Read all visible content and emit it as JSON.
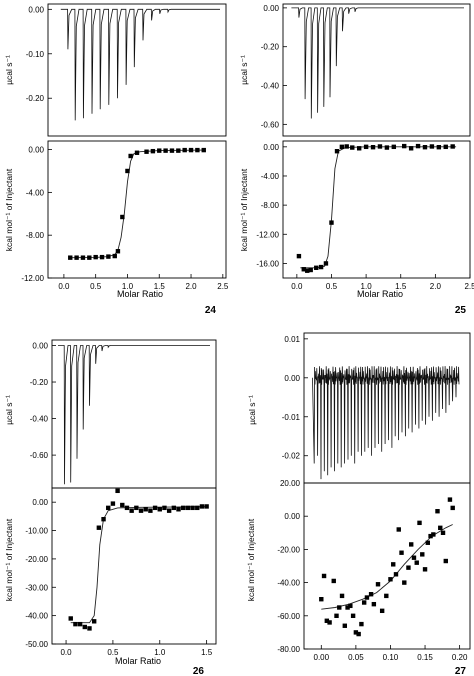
{
  "chart_data": [
    {
      "type": "line",
      "compound_label": "24",
      "thermogram": {
        "ylabel": "µcal s⁻¹",
        "yticks": [
          "0.00",
          "-0.10",
          "-0.20"
        ],
        "ylim": [
          -0.285,
          0.012
        ],
        "baseline": 0.0,
        "x_range": [
          0,
          3650
        ],
        "peaks": [
          {
            "x": 300,
            "y": -0.09
          },
          {
            "x": 460,
            "y": -0.25
          },
          {
            "x": 640,
            "y": -0.245
          },
          {
            "x": 830,
            "y": -0.235
          },
          {
            "x": 1010,
            "y": -0.225
          },
          {
            "x": 1200,
            "y": -0.215
          },
          {
            "x": 1390,
            "y": -0.2
          },
          {
            "x": 1580,
            "y": -0.17
          },
          {
            "x": 1760,
            "y": -0.13
          },
          {
            "x": 1950,
            "y": -0.07
          },
          {
            "x": 2140,
            "y": -0.025
          },
          {
            "x": 2320,
            "y": -0.01
          },
          {
            "x": 2500,
            "y": -0.006
          }
        ]
      },
      "isotherm": {
        "xlabel": "Molar Ratio",
        "ylabel": "kcal mol⁻¹ of Injectant",
        "xticks": [
          "0.0",
          "0.5",
          "1.0",
          "1.5",
          "2.0",
          "2.5"
        ],
        "yticks": [
          "0.00",
          "-4.00",
          "-8.00",
          "-12.00"
        ],
        "xlim": [
          -0.25,
          2.55
        ],
        "ylim": [
          -12.0,
          0.8
        ],
        "markers": "squares",
        "points": [
          [
            0.1,
            -10.1
          ],
          [
            0.2,
            -10.1
          ],
          [
            0.3,
            -10.1
          ],
          [
            0.4,
            -10.1
          ],
          [
            0.5,
            -10.05
          ],
          [
            0.6,
            -10.05
          ],
          [
            0.7,
            -10.0
          ],
          [
            0.8,
            -9.95
          ],
          [
            0.85,
            -9.5
          ],
          [
            0.92,
            -6.3
          ],
          [
            1.0,
            -2.0
          ],
          [
            1.05,
            -0.6
          ],
          [
            1.15,
            -0.3
          ],
          [
            1.3,
            -0.2
          ],
          [
            1.4,
            -0.15
          ],
          [
            1.5,
            -0.1
          ],
          [
            1.6,
            -0.1
          ],
          [
            1.7,
            -0.1
          ],
          [
            1.8,
            -0.1
          ],
          [
            1.9,
            -0.05
          ],
          [
            2.0,
            -0.05
          ],
          [
            2.1,
            -0.05
          ],
          [
            2.2,
            -0.05
          ]
        ],
        "fit": [
          [
            0.1,
            -10.1
          ],
          [
            0.5,
            -10.08
          ],
          [
            0.7,
            -10.0
          ],
          [
            0.8,
            -9.8
          ],
          [
            0.85,
            -9.4
          ],
          [
            0.9,
            -8.2
          ],
          [
            0.95,
            -6.0
          ],
          [
            1.0,
            -3.0
          ],
          [
            1.05,
            -1.1
          ],
          [
            1.1,
            -0.4
          ],
          [
            1.2,
            -0.2
          ],
          [
            1.5,
            -0.1
          ],
          [
            2.2,
            -0.05
          ]
        ]
      }
    },
    {
      "type": "line",
      "compound_label": "25",
      "thermogram": {
        "ylabel": "µcal s⁻¹",
        "yticks": [
          "0.00",
          "-0.20",
          "-0.40",
          "-0.60"
        ],
        "ylim": [
          -0.66,
          0.02
        ],
        "baseline": 0.0,
        "x_range": [
          0,
          3650
        ],
        "peaks": [
          {
            "x": 200,
            "y": -0.05
          },
          {
            "x": 330,
            "y": -0.47
          },
          {
            "x": 460,
            "y": -0.57
          },
          {
            "x": 590,
            "y": -0.54
          },
          {
            "x": 720,
            "y": -0.51
          },
          {
            "x": 850,
            "y": -0.46
          },
          {
            "x": 980,
            "y": -0.3
          },
          {
            "x": 1110,
            "y": -0.12
          },
          {
            "x": 1240,
            "y": -0.03
          },
          {
            "x": 1370,
            "y": -0.02
          }
        ]
      },
      "isotherm": {
        "xlabel": "Molar Ratio",
        "ylabel": "kcal mol⁻¹ of Injectant",
        "xticks": [
          "0.0",
          "0.5",
          "1.0",
          "1.5",
          "2.0",
          "2.5"
        ],
        "yticks": [
          "0.00",
          "-4.00",
          "-8.00",
          "-12.00",
          "-16.00"
        ],
        "xlim": [
          -0.2,
          2.5
        ],
        "ylim": [
          -18.0,
          0.8
        ],
        "markers": "squares",
        "points": [
          [
            0.03,
            -15.0
          ],
          [
            0.1,
            -16.8
          ],
          [
            0.15,
            -17.0
          ],
          [
            0.2,
            -16.9
          ],
          [
            0.28,
            -16.6
          ],
          [
            0.35,
            -16.5
          ],
          [
            0.42,
            -16.0
          ],
          [
            0.5,
            -10.4
          ],
          [
            0.58,
            -0.6
          ],
          [
            0.65,
            0.0
          ],
          [
            0.72,
            0.05
          ],
          [
            0.8,
            -0.1
          ],
          [
            0.9,
            -0.2
          ],
          [
            1.0,
            0.0
          ],
          [
            1.1,
            -0.05
          ],
          [
            1.2,
            0.05
          ],
          [
            1.3,
            -0.1
          ],
          [
            1.4,
            0.0
          ],
          [
            1.55,
            0.1
          ],
          [
            1.65,
            -0.2
          ],
          [
            1.75,
            0.1
          ],
          [
            1.85,
            -0.05
          ],
          [
            1.95,
            0.05
          ],
          [
            2.05,
            -0.05
          ],
          [
            2.15,
            0.0
          ],
          [
            2.25,
            0.05
          ]
        ],
        "fit": [
          [
            0.05,
            -16.6
          ],
          [
            0.3,
            -16.6
          ],
          [
            0.4,
            -16.4
          ],
          [
            0.45,
            -15.0
          ],
          [
            0.5,
            -10.0
          ],
          [
            0.55,
            -3.0
          ],
          [
            0.6,
            -0.6
          ],
          [
            0.7,
            -0.1
          ],
          [
            1.0,
            0.0
          ],
          [
            2.3,
            0.0
          ]
        ]
      }
    },
    {
      "type": "line",
      "compound_label": "26",
      "thermogram": {
        "ylabel": "µcal s⁻¹",
        "yticks": [
          "0.00",
          "-0.20",
          "-0.40",
          "-0.60"
        ],
        "ylim": [
          -0.78,
          0.03
        ],
        "baseline": 0.0,
        "x_range": [
          0,
          3650
        ],
        "peaks": [
          {
            "x": 150,
            "y": -0.76
          },
          {
            "x": 300,
            "y": -0.75
          },
          {
            "x": 450,
            "y": -0.62
          },
          {
            "x": 600,
            "y": -0.46
          },
          {
            "x": 750,
            "y": -0.33
          },
          {
            "x": 900,
            "y": -0.1
          },
          {
            "x": 1050,
            "y": -0.03
          },
          {
            "x": 1200,
            "y": -0.01
          }
        ]
      },
      "isotherm": {
        "xlabel": "Molar Ratio",
        "ylabel": "kcal mol⁻¹ of Injectant",
        "xticks": [
          "0.0",
          "0.5",
          "1.0",
          "1.5"
        ],
        "yticks": [
          "0.00",
          "-10.00",
          "-20.00",
          "-30.00",
          "-40.00",
          "-50.00"
        ],
        "xlim": [
          -0.15,
          1.6
        ],
        "ylim": [
          -50.0,
          5.0
        ],
        "markers": "squares",
        "points": [
          [
            0.05,
            -41.0
          ],
          [
            0.1,
            -43.0
          ],
          [
            0.15,
            -43.0
          ],
          [
            0.2,
            -44.0
          ],
          [
            0.25,
            -44.5
          ],
          [
            0.3,
            -42.0
          ],
          [
            0.35,
            -9.0
          ],
          [
            0.4,
            -6.0
          ],
          [
            0.45,
            -2.0
          ],
          [
            0.5,
            -0.5
          ],
          [
            0.55,
            4.0
          ],
          [
            0.6,
            -1.0
          ],
          [
            0.65,
            -2.0
          ],
          [
            0.7,
            -3.0
          ],
          [
            0.75,
            -2.0
          ],
          [
            0.8,
            -3.0
          ],
          [
            0.85,
            -2.5
          ],
          [
            0.9,
            -3.0
          ],
          [
            0.95,
            -2.0
          ],
          [
            1.0,
            -2.5
          ],
          [
            1.05,
            -2.0
          ],
          [
            1.1,
            -3.0
          ],
          [
            1.15,
            -2.0
          ],
          [
            1.2,
            -2.5
          ],
          [
            1.25,
            -2.0
          ],
          [
            1.3,
            -2.0
          ],
          [
            1.35,
            -2.0
          ],
          [
            1.4,
            -2.0
          ],
          [
            1.45,
            -1.5
          ],
          [
            1.5,
            -1.5
          ]
        ],
        "fit": [
          [
            0.05,
            -42.5
          ],
          [
            0.25,
            -42.5
          ],
          [
            0.3,
            -40.0
          ],
          [
            0.33,
            -30.0
          ],
          [
            0.36,
            -15.0
          ],
          [
            0.4,
            -6.0
          ],
          [
            0.45,
            -3.0
          ],
          [
            0.55,
            -2.0
          ],
          [
            0.8,
            -1.8
          ],
          [
            1.5,
            -1.6
          ]
        ]
      }
    },
    {
      "type": "line",
      "compound_label": "27",
      "thermogram": {
        "ylabel": "µcal s⁻¹",
        "yticks": [
          "0.01",
          "0.00",
          "-0.01",
          "-0.02"
        ],
        "ylim": [
          -0.027,
          0.0115
        ],
        "baseline": 0.0,
        "x_range": [
          0,
          3650
        ],
        "noise_amplitude": 0.003,
        "peaks": [
          {
            "x": 100,
            "y": -0.022
          },
          {
            "x": 180,
            "y": -0.02
          },
          {
            "x": 260,
            "y": -0.026
          },
          {
            "x": 340,
            "y": -0.024
          },
          {
            "x": 420,
            "y": -0.025
          },
          {
            "x": 500,
            "y": -0.023
          },
          {
            "x": 580,
            "y": -0.024
          },
          {
            "x": 660,
            "y": -0.022
          },
          {
            "x": 740,
            "y": -0.023
          },
          {
            "x": 820,
            "y": -0.022
          },
          {
            "x": 900,
            "y": -0.021
          },
          {
            "x": 980,
            "y": -0.02
          },
          {
            "x": 1060,
            "y": -0.022
          },
          {
            "x": 1140,
            "y": -0.019
          },
          {
            "x": 1220,
            "y": -0.02
          },
          {
            "x": 1300,
            "y": -0.019
          },
          {
            "x": 1380,
            "y": -0.018
          },
          {
            "x": 1460,
            "y": -0.02
          },
          {
            "x": 1540,
            "y": -0.018
          },
          {
            "x": 1620,
            "y": -0.017
          },
          {
            "x": 1700,
            "y": -0.019
          },
          {
            "x": 1780,
            "y": -0.017
          },
          {
            "x": 1860,
            "y": -0.016
          },
          {
            "x": 1940,
            "y": -0.018
          },
          {
            "x": 2020,
            "y": -0.015
          },
          {
            "x": 2100,
            "y": -0.016
          },
          {
            "x": 2180,
            "y": -0.014
          },
          {
            "x": 2260,
            "y": -0.015
          },
          {
            "x": 2340,
            "y": -0.013
          },
          {
            "x": 2420,
            "y": -0.014
          },
          {
            "x": 2500,
            "y": -0.012
          },
          {
            "x": 2580,
            "y": -0.013
          },
          {
            "x": 2660,
            "y": -0.011
          },
          {
            "x": 2740,
            "y": -0.012
          },
          {
            "x": 2820,
            "y": -0.01
          },
          {
            "x": 2900,
            "y": -0.011
          },
          {
            "x": 2980,
            "y": -0.009
          },
          {
            "x": 3060,
            "y": -0.01
          },
          {
            "x": 3140,
            "y": -0.008
          },
          {
            "x": 3220,
            "y": -0.009
          },
          {
            "x": 3300,
            "y": -0.007
          },
          {
            "x": 3380,
            "y": -0.006
          },
          {
            "x": 3460,
            "y": -0.005
          }
        ]
      },
      "isotherm": {
        "xlabel": "",
        "ylabel": "kcal mol⁻¹ of Injectant",
        "xticks": [
          "0.00",
          "0.05",
          "0.10",
          "0.15",
          "0.20"
        ],
        "yticks": [
          "20.00",
          "0.00",
          "-20.00",
          "-40.00",
          "-60.00",
          "-80.00"
        ],
        "xlim": [
          -0.025,
          0.215
        ],
        "ylim": [
          -80.0,
          20.0
        ],
        "markers": "squares",
        "points": [
          [
            0.0,
            -50
          ],
          [
            0.004,
            -36
          ],
          [
            0.008,
            -63
          ],
          [
            0.012,
            -64
          ],
          [
            0.018,
            -39
          ],
          [
            0.022,
            -60
          ],
          [
            0.026,
            -55
          ],
          [
            0.03,
            -48
          ],
          [
            0.034,
            -66
          ],
          [
            0.038,
            -55
          ],
          [
            0.042,
            -54
          ],
          [
            0.046,
            -60
          ],
          [
            0.05,
            -70
          ],
          [
            0.054,
            -71
          ],
          [
            0.058,
            -65
          ],
          [
            0.062,
            -52
          ],
          [
            0.066,
            -49
          ],
          [
            0.072,
            -47
          ],
          [
            0.076,
            -53
          ],
          [
            0.082,
            -41
          ],
          [
            0.088,
            -57
          ],
          [
            0.094,
            -48
          ],
          [
            0.1,
            -38
          ],
          [
            0.104,
            -29
          ],
          [
            0.108,
            -35
          ],
          [
            0.112,
            -8
          ],
          [
            0.116,
            -22
          ],
          [
            0.12,
            -40
          ],
          [
            0.126,
            -31
          ],
          [
            0.13,
            -17
          ],
          [
            0.134,
            -25
          ],
          [
            0.138,
            -28
          ],
          [
            0.142,
            -4
          ],
          [
            0.146,
            -23
          ],
          [
            0.15,
            -32
          ],
          [
            0.154,
            -16
          ],
          [
            0.158,
            -12
          ],
          [
            0.162,
            -11
          ],
          [
            0.168,
            3
          ],
          [
            0.172,
            -7
          ],
          [
            0.176,
            -10
          ],
          [
            0.18,
            -27
          ],
          [
            0.186,
            10
          ],
          [
            0.19,
            5
          ]
        ],
        "fit": [
          [
            0.0,
            -56
          ],
          [
            0.02,
            -55
          ],
          [
            0.04,
            -53
          ],
          [
            0.06,
            -50
          ],
          [
            0.08,
            -46
          ],
          [
            0.1,
            -39
          ],
          [
            0.12,
            -29
          ],
          [
            0.14,
            -20
          ],
          [
            0.16,
            -12
          ],
          [
            0.18,
            -7
          ],
          [
            0.19,
            -5
          ]
        ]
      }
    }
  ]
}
